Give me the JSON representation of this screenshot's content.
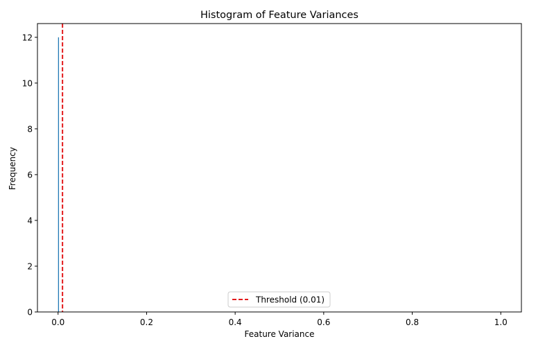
{
  "chart_data": {
    "type": "bar",
    "title": "Histogram of Feature Variances",
    "xlabel": "Feature Variance",
    "ylabel": "Frequency",
    "xlim": [
      -0.0466,
      1.0466
    ],
    "ylim": [
      0,
      12.6
    ],
    "x_ticks": [
      0.0,
      0.2,
      0.4,
      0.6,
      0.8,
      1.0
    ],
    "x_tick_labels": [
      "0.0",
      "0.2",
      "0.4",
      "0.6",
      "0.8",
      "1.0"
    ],
    "y_ticks": [
      0,
      2,
      4,
      6,
      8,
      10,
      12
    ],
    "y_tick_labels": [
      "0",
      "2",
      "4",
      "6",
      "8",
      "10",
      "12"
    ],
    "grid": false,
    "bins": [
      {
        "start": 0.0,
        "end": 0.002,
        "count": 12
      }
    ],
    "threshold_line": {
      "x": 0.01,
      "label": "Threshold (0.01)",
      "color": "#e31a1c",
      "style": "dashed"
    },
    "legend": {
      "placement": "lower center",
      "entries": [
        "Threshold (0.01)"
      ]
    },
    "colors": {
      "threshold": "#e31a1c",
      "axis": "#000000",
      "bar": "#1f77b4"
    }
  }
}
